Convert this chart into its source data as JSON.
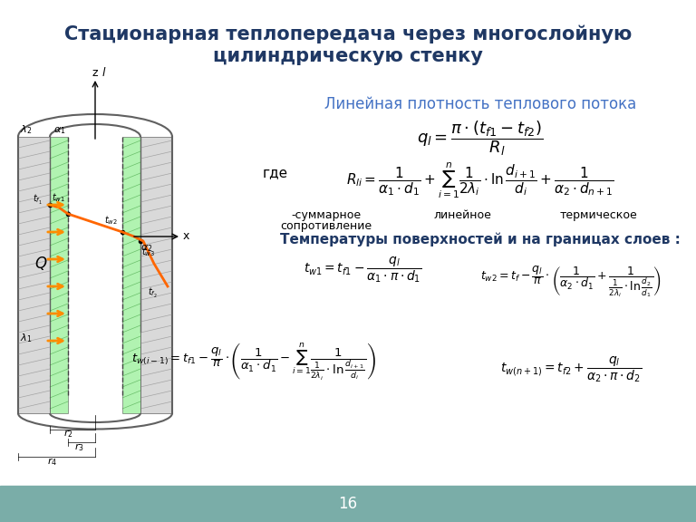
{
  "bg_color": "#f0f0f0",
  "slide_bg": "#ffffff",
  "footer_color": "#7aada8",
  "footer_text": "16",
  "footer_text_color": "#ffffff",
  "title_text": "Стационарная теплопередача через многослойную\nцилиндрическую стенку",
  "title_color": "#1f3864",
  "title_fontsize": 15,
  "subtitle_text": "Линейная плотность теплового потока",
  "subtitle_color": "#4472c4",
  "subtitle_fontsize": 12,
  "formula1": "$q_l = \\dfrac{\\pi \\cdot (t_{f1} - t_{f2})}{R_l}$",
  "formula2": "$R_{li} = \\dfrac{1}{\\alpha_1 \\cdot d_1} + \\sum_{i=1}^{n} \\dfrac{1}{2\\lambda_i} \\cdot \\ln\\dfrac{d_{i+1}}{d_i} + \\dfrac{1}{\\alpha_2 \\cdot d_{n+1}}$",
  "formula3_label": "где",
  "label1": "-суммарное",
  "label2": "линейное",
  "label3": "термическое\nсопротивление",
  "temp_header": "Температуры поверхностей и на границах слоев :",
  "temp_header_color": "#1f3864",
  "formula_tw1": "$t_{w1} = t_{f1} - \\dfrac{q_l}{\\alpha_1 \\cdot \\pi \\cdot d_1}$",
  "formula_tw2": "$t_{w2} = t_{f} - \\dfrac{q_l}{\\pi} \\cdot \\left( \\dfrac{1}{\\alpha_2 \\cdot d_1} + \\dfrac{1}{\\dfrac{1}{2\\lambda_i} \\cdot \\ln\\dfrac{d_2}{d_1}} \\right)$",
  "formula_twi": "$t_{w(i-1)} = t_{f1} - \\dfrac{q_l}{\\pi} \\cdot \\left( \\dfrac{1}{\\alpha_1 \\cdot d_1} - \\sum_{i=1}^{n} \\dfrac{1}{\\dfrac{1}{2\\lambda_i} \\cdot \\ln\\dfrac{d_{i+1}}{d_i}} \\right)$",
  "formula_twn": "$t_{w(n+1)} = t_{f2} + \\dfrac{q_l}{\\alpha_2 \\cdot \\pi \\cdot d_2}$",
  "text_color": "#000000",
  "formula_color": "#000000"
}
